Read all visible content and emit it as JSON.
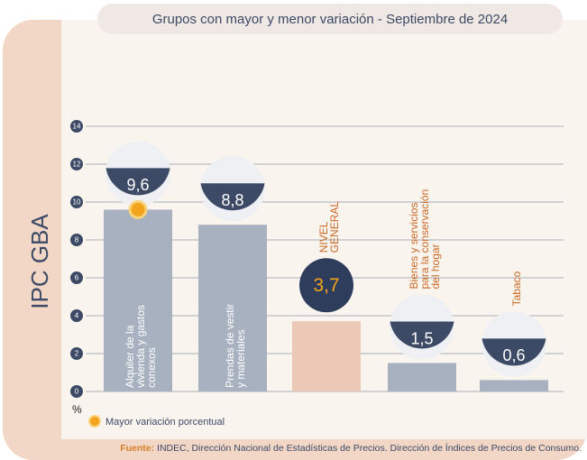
{
  "chart_data": {
    "type": "bar",
    "title": "Grupos con mayor y menor variación - Septiembre de 2024",
    "side_title": "IPC GBA",
    "unit": "%",
    "categories": [
      [
        "Alquiler de la",
        "vivienda y gastos",
        "conexos"
      ],
      [
        "Prendas de vestir",
        "y materiales"
      ],
      [
        "NIVEL",
        "GENERAL"
      ],
      [
        "Bienes y servicios",
        "para la conservación",
        "del hogar"
      ],
      [
        "Tabaco"
      ]
    ],
    "values": [
      9.6,
      8.8,
      3.7,
      1.5,
      0.6
    ],
    "value_labels": [
      "9,6",
      "8,8",
      "3,7",
      "1,5",
      "0,6"
    ],
    "colors": [
      "#a7b1c0",
      "#a7b1c0",
      "#ecc9b6",
      "#a7b1c0",
      "#a7b1c0"
    ],
    "ylim": [
      0,
      14
    ],
    "yticks": [
      0,
      2,
      4,
      6,
      8,
      10,
      12,
      14
    ],
    "grid": true,
    "highlight": 0,
    "legend": {
      "label": "Mayor variación porcentual",
      "color": "#f3a41d"
    },
    "source": {
      "label": "Fuente:",
      "text": " INDEC, Dirección Nacional de Estadísticas de Precios. Dirección de Índices de Precios de Consumo."
    }
  }
}
